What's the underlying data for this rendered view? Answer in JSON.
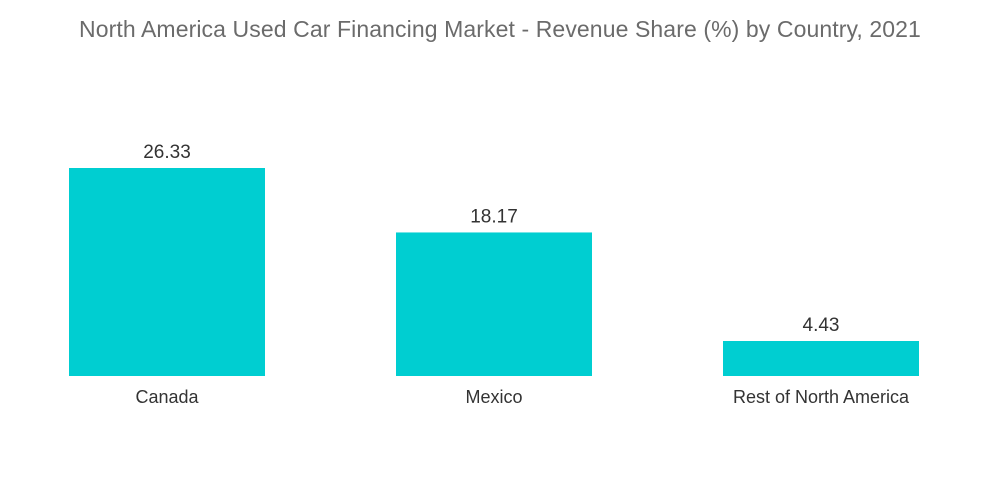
{
  "chart_data": {
    "type": "bar",
    "title": "North America Used Car Financing Market - Revenue Share (%) by Country, 2021",
    "categories": [
      "Canada",
      "Mexico",
      "Rest of North America"
    ],
    "values": [
      26.33,
      18.17,
      4.43
    ],
    "value_labels": [
      "26.33",
      "18.17",
      "4.43"
    ],
    "xlabel": "",
    "ylabel": "",
    "ylim": [
      0,
      26.33
    ],
    "grid": false,
    "legend": "none",
    "colors": {
      "bar": "#00ced1",
      "title": "#6b6b6b",
      "label": "#333333"
    }
  }
}
